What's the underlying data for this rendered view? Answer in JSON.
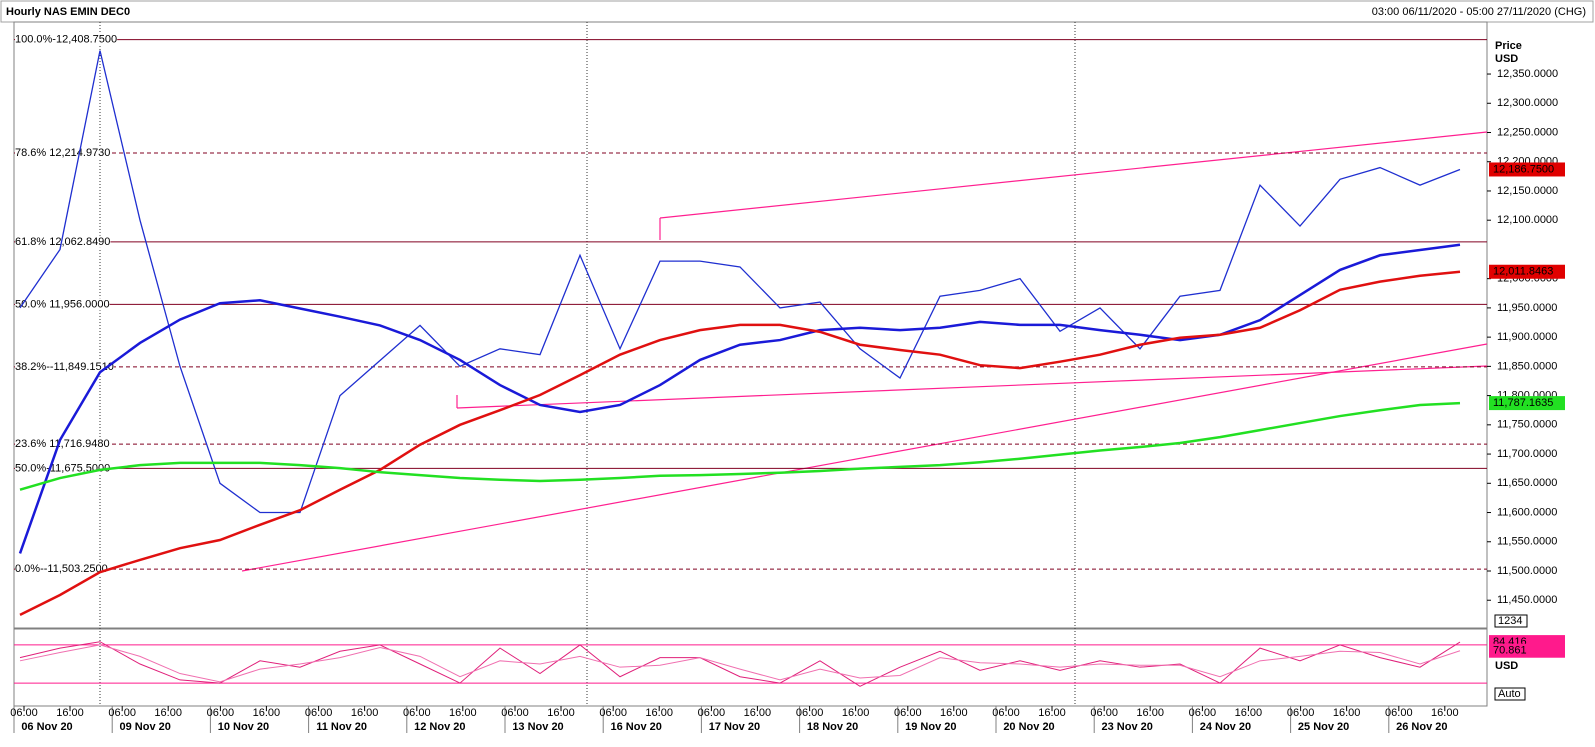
{
  "header": {
    "title": "Hourly NAS EMIN DEC0",
    "range": "03:00 06/11/2020 - 05:00 27/11/2020 (CHG)"
  },
  "time_axis": {
    "days": [
      {
        "date": "06 Nov 20",
        "times": [
          "06:00",
          "16:00"
        ]
      },
      {
        "date": "09 Nov 20",
        "times": [
          "06:00",
          "16:00"
        ]
      },
      {
        "date": "10 Nov 20",
        "times": [
          "06:00",
          "16:00"
        ]
      },
      {
        "date": "11 Nov 20",
        "times": [
          "06:00",
          "16:00"
        ]
      },
      {
        "date": "12 Nov 20",
        "times": [
          "06:00",
          "16:00"
        ]
      },
      {
        "date": "13 Nov 20",
        "times": [
          "06:00",
          "16:00"
        ]
      },
      {
        "date": "16 Nov 20",
        "times": [
          "06:00",
          "16:00"
        ]
      },
      {
        "date": "17 Nov 20",
        "times": [
          "06:00",
          "16:00"
        ]
      },
      {
        "date": "18 Nov 20",
        "times": [
          "06:00",
          "16:00"
        ]
      },
      {
        "date": "19 Nov 20",
        "times": [
          "06:00",
          "16:00"
        ]
      },
      {
        "date": "20 Nov 20",
        "times": [
          "06:00",
          "16:00"
        ]
      },
      {
        "date": "23 Nov 20",
        "times": [
          "06:00",
          "16:00"
        ]
      },
      {
        "date": "24 Nov 20",
        "times": [
          "06:00",
          "16:00"
        ]
      },
      {
        "date": "25 Nov 20",
        "times": [
          "06:00",
          "16:00"
        ]
      },
      {
        "date": "26 Nov 20",
        "times": [
          "06:00",
          "16:00"
        ]
      }
    ]
  },
  "chart_data": [
    {
      "type": "line",
      "y_axis_title": "Price",
      "y_axis_unit": "USD",
      "ylim": [
        11402.5,
        12439
      ],
      "yticks": [
        {
          "value": 11450,
          "label": "11,450.0000"
        },
        {
          "value": 11500,
          "label": "11,500.0000"
        },
        {
          "value": 11550,
          "label": "11,550.0000"
        },
        {
          "value": 11600,
          "label": "11,600.0000"
        },
        {
          "value": 11650,
          "label": "11,650.0000"
        },
        {
          "value": 11700,
          "label": "11,700.0000"
        },
        {
          "value": 11750,
          "label": "11,750.0000"
        },
        {
          "value": 11800,
          "label": "11,800.0000"
        },
        {
          "value": 11850,
          "label": "11,850.0000"
        },
        {
          "value": 11900,
          "label": "11,900.0000"
        },
        {
          "value": 11950,
          "label": "11,950.0000"
        },
        {
          "value": 12000,
          "label": "12,000.0000"
        },
        {
          "value": 12100,
          "label": "12,100.0000"
        },
        {
          "value": 12150,
          "label": "12,150.0000"
        },
        {
          "value": 12200,
          "label": "12,200.0000"
        },
        {
          "value": 12250,
          "label": "12,250.0000"
        },
        {
          "value": 12300,
          "label": "12,300.0000"
        },
        {
          "value": 12350,
          "label": "12,350.0000"
        }
      ],
      "levels": [
        {
          "value": 12408.75,
          "label": "100.0%-12,408.7500",
          "style": "solid"
        },
        {
          "value": 12214.973,
          "label": "78.6%  12,214.9730",
          "style": "dashed"
        },
        {
          "value": 12062.849,
          "label": "61.8% 12,062.8490",
          "style": "solid"
        },
        {
          "value": 11956,
          "label": "50.0%  11,956.0000",
          "style": "solid"
        },
        {
          "value": 11849.151,
          "label": "38.2%--11,849.1510",
          "style": "dashed"
        },
        {
          "value": 11716.948,
          "label": "23.6%  11,716.9480",
          "style": "dashed"
        },
        {
          "value": 11675.5,
          "label": "50.0%-11,675.5000",
          "style": "solid"
        },
        {
          "value": 11503.25,
          "label": "0.0%--11,503.2500",
          "style": "dashed"
        }
      ],
      "series": [
        {
          "name": "NAS EMIN DEC0",
          "color": "#1f2fd0",
          "width": 1.3,
          "end_label": "12,186.7500",
          "label_color": "#e00000",
          "values": [
            11950,
            12050,
            12390,
            12100,
            11850,
            11650,
            11600,
            11600,
            11800,
            11860,
            11920,
            11850,
            11880,
            11870,
            12040,
            11880,
            12030,
            12030,
            12020,
            11950,
            11960,
            11880,
            11830,
            11970,
            11980,
            12000,
            11910,
            11950,
            11880,
            11970,
            11980,
            12160,
            12090,
            12170,
            12190,
            12160,
            12186.75
          ]
        },
        {
          "name": "MA blue",
          "color": "#1a1ad8",
          "width": 2.5,
          "values": [
            11530,
            11724,
            11840,
            11890,
            11930,
            11958,
            11963,
            11949,
            11935,
            11920,
            11895,
            11861,
            11818,
            11784,
            11772,
            11784,
            11818,
            11861,
            11887,
            11895,
            11912,
            11916,
            11912,
            11916,
            11926,
            11921,
            11921,
            11912,
            11904,
            11895,
            11904,
            11929,
            11972,
            12015,
            12040,
            12049,
            12058
          ]
        },
        {
          "name": "MA red",
          "color": "#e01010",
          "width": 2.5,
          "end_label": "12,011.8463",
          "label_color": "#e00000",
          "values": [
            11425,
            11459,
            11498,
            11519,
            11539,
            11553,
            11579,
            11604,
            11639,
            11673,
            11716,
            11750,
            11775,
            11801,
            11835,
            11870,
            11895,
            11912,
            11921,
            11921,
            11909,
            11887,
            11878,
            11870,
            11852,
            11847,
            11858,
            11870,
            11887,
            11899,
            11904,
            11916,
            11946,
            11981,
            11995,
            12005,
            12011.8463
          ]
        },
        {
          "name": "MA green",
          "color": "#22e022",
          "width": 2.5,
          "end_label": "11,787.1635",
          "label_color": "#22e022",
          "values": [
            11639,
            11659,
            11673,
            11681,
            11685,
            11685,
            11685,
            11681,
            11676,
            11669,
            11664,
            11659,
            11656,
            11654,
            11656,
            11659,
            11663,
            11664,
            11666,
            11668,
            11671,
            11675,
            11678,
            11681,
            11686,
            11692,
            11699,
            11706,
            11712,
            11719,
            11729,
            11741,
            11753,
            11765,
            11775,
            11784,
            11787.1635
          ]
        }
      ]
    },
    {
      "type": "line",
      "ylim": [
        -16,
        105
      ],
      "levels": [
        80,
        20
      ],
      "level_color": "#ff1a8c",
      "panel_labels": {
        "top": "1234",
        "unit": "USD",
        "bottom": "Auto"
      },
      "series": [
        {
          "name": "%K",
          "color": "#e0207a",
          "width": 1,
          "end_label": "84.416",
          "label_color": "#ff1a8c",
          "values": [
            60,
            75,
            85,
            50,
            25,
            20,
            55,
            45,
            70,
            80,
            50,
            20,
            75,
            35,
            80,
            30,
            60,
            60,
            30,
            20,
            55,
            15,
            45,
            70,
            40,
            55,
            40,
            55,
            45,
            50,
            20,
            75,
            55,
            80,
            60,
            45,
            84.416
          ]
        },
        {
          "name": "%D",
          "color": "#f070b0",
          "width": 1,
          "end_label": "70.861",
          "label_color": "#ff1a8c",
          "values": [
            55,
            68,
            80,
            62,
            35,
            22,
            42,
            50,
            60,
            76,
            62,
            30,
            55,
            50,
            62,
            45,
            48,
            60,
            42,
            25,
            42,
            28,
            32,
            60,
            52,
            50,
            45,
            50,
            48,
            48,
            30,
            55,
            62,
            70,
            68,
            50,
            70.861
          ]
        }
      ]
    }
  ]
}
